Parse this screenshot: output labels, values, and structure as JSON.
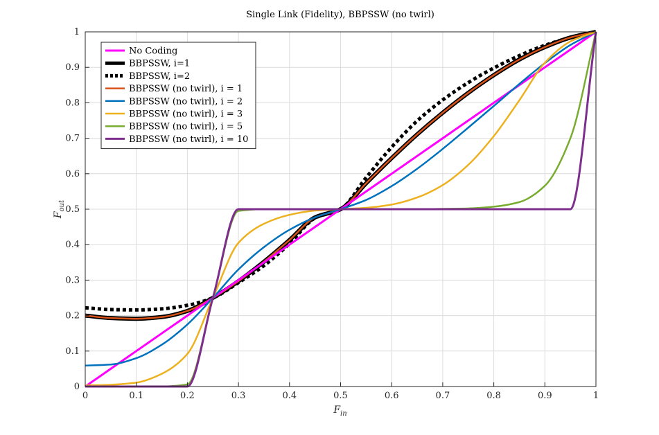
{
  "chart_data": {
    "type": "line",
    "title": "Single Link (Fidelity), BBPSSW (no twirl)",
    "xlabel": "F",
    "xlabel_sub": "in",
    "ylabel": "F",
    "ylabel_sub": "out",
    "xlim": [
      0,
      1
    ],
    "ylim": [
      0,
      1
    ],
    "xticks": [
      "0",
      "0.1",
      "0.2",
      "0.3",
      "0.4",
      "0.5",
      "0.6",
      "0.7",
      "0.8",
      "0.9",
      "1"
    ],
    "yticks": [
      "0",
      "0.1",
      "0.2",
      "0.3",
      "0.4",
      "0.5",
      "0.6",
      "0.7",
      "0.8",
      "0.9",
      "1"
    ],
    "grid": true,
    "legend_position": "top-left",
    "x": [
      0,
      0.05,
      0.1,
      0.15,
      0.2,
      0.25,
      0.3,
      0.35,
      0.4,
      0.45,
      0.5,
      0.55,
      0.6,
      0.65,
      0.7,
      0.75,
      0.8,
      0.85,
      0.9,
      0.95,
      1
    ],
    "series": [
      {
        "name": "No Coding",
        "color": "#ff00ff",
        "style": "solid",
        "width": 3,
        "values": [
          0,
          0.05,
          0.1,
          0.15,
          0.2,
          0.25,
          0.3,
          0.35,
          0.4,
          0.45,
          0.5,
          0.55,
          0.6,
          0.65,
          0.7,
          0.75,
          0.8,
          0.85,
          0.9,
          0.95,
          1
        ]
      },
      {
        "name": "BBPSSW, i=1",
        "color": "#000000",
        "style": "solid",
        "width": 6,
        "values": [
          0.2,
          0.193,
          0.191,
          0.196,
          0.213,
          0.25,
          0.297,
          0.352,
          0.413,
          0.477,
          0.5,
          0.573,
          0.644,
          0.711,
          0.772,
          0.828,
          0.878,
          0.922,
          0.957,
          0.984,
          1
        ]
      },
      {
        "name": "BBPSSW, i=2",
        "color": "#000000",
        "style": "dotted",
        "width": 5,
        "values": [
          0.222,
          0.217,
          0.216,
          0.219,
          0.229,
          0.25,
          0.293,
          0.341,
          0.403,
          0.475,
          0.5,
          0.589,
          0.675,
          0.749,
          0.808,
          0.857,
          0.898,
          0.933,
          0.962,
          0.984,
          1
        ]
      },
      {
        "name": "BBPSSW (no twirl), i = 1",
        "color": "#d95319",
        "style": "solid",
        "width": 2.5,
        "values": [
          0.2,
          0.193,
          0.191,
          0.196,
          0.213,
          0.25,
          0.297,
          0.352,
          0.413,
          0.477,
          0.5,
          0.573,
          0.644,
          0.711,
          0.772,
          0.828,
          0.878,
          0.922,
          0.957,
          0.984,
          1
        ]
      },
      {
        "name": "BBPSSW (no twirl), i = 2",
        "color": "#0072bd",
        "style": "solid",
        "width": 2.5,
        "values": [
          0.059,
          0.062,
          0.08,
          0.118,
          0.175,
          0.25,
          0.33,
          0.393,
          0.442,
          0.477,
          0.5,
          0.526,
          0.565,
          0.614,
          0.67,
          0.73,
          0.791,
          0.853,
          0.912,
          0.963,
          1
        ]
      },
      {
        "name": "BBPSSW (no twirl), i = 3",
        "color": "#edb120",
        "style": "solid",
        "width": 2.5,
        "values": [
          0.003,
          0.005,
          0.011,
          0.036,
          0.092,
          0.25,
          0.405,
          0.459,
          0.484,
          0.496,
          0.5,
          0.504,
          0.513,
          0.533,
          0.568,
          0.625,
          0.706,
          0.807,
          0.913,
          0.973,
          1
        ]
      },
      {
        "name": "BBPSSW (no twirl), i = 5",
        "color": "#77ac30",
        "style": "solid",
        "width": 2.5,
        "values": [
          0,
          0,
          0,
          0,
          0.006,
          0.25,
          0.495,
          0.5,
          0.5,
          0.5,
          0.5,
          0.5,
          0.5,
          0.5,
          0.501,
          0.502,
          0.507,
          0.52,
          0.566,
          0.7,
          1
        ]
      },
      {
        "name": "BBPSSW (no twirl), i = 10",
        "color": "#7e2f8e",
        "style": "solid",
        "width": 3,
        "values": [
          0,
          0,
          0,
          0,
          0,
          0.25,
          0.5,
          0.5,
          0.5,
          0.5,
          0.5,
          0.5,
          0.5,
          0.5,
          0.5,
          0.5,
          0.5,
          0.5,
          0.5,
          0.5,
          1
        ]
      }
    ]
  }
}
